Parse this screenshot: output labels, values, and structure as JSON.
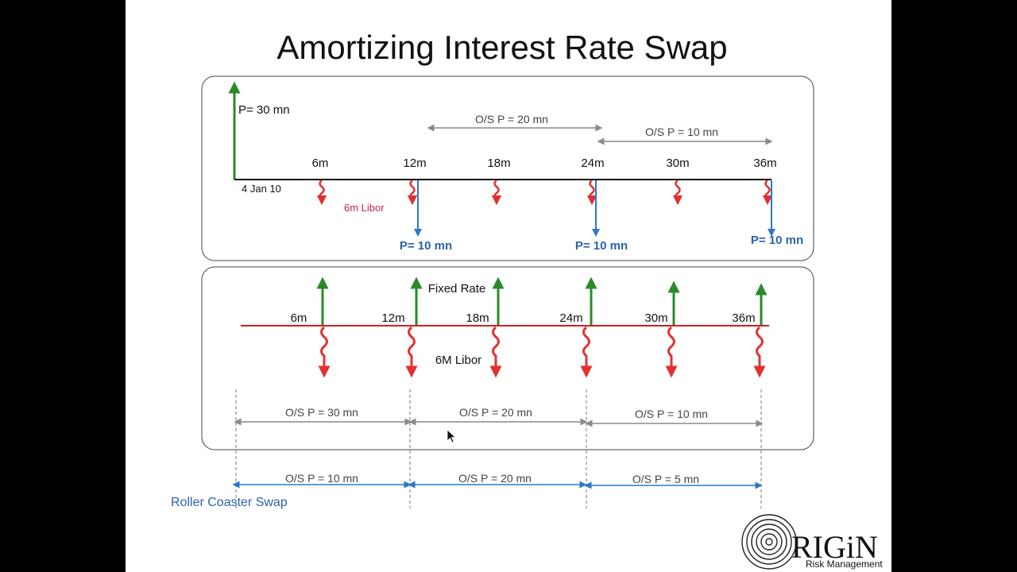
{
  "title": "Amortizing Interest Rate Swap",
  "colors": {
    "green": "#2a8a2a",
    "red": "#e23030",
    "blue": "#2a78c8",
    "gray": "#8a8a8a"
  },
  "panel1": {
    "principal_label": "P= 30 mn",
    "start_date": "4 Jan 10",
    "libor_label": "6m Libor",
    "periods": [
      "6m",
      "12m",
      "18m",
      "24m",
      "30m",
      "36m"
    ],
    "outstanding": [
      "O/S P = 20 mn",
      "O/S P = 10 mn"
    ],
    "repayments": [
      "P= 10 mn",
      "P= 10 mn",
      "P= 10 mn"
    ]
  },
  "panel2": {
    "fixed_label": "Fixed Rate",
    "libor_label": "6M Libor",
    "periods": [
      "6m",
      "12m",
      "18m",
      "24m",
      "30m",
      "36m"
    ],
    "outstanding": [
      "O/S P = 30 mn",
      "O/S P = 20 mn",
      "O/S P = 10 mn"
    ]
  },
  "roller": {
    "label": "Roller Coaster Swap",
    "outstanding": [
      "O/S P = 10 mn",
      "O/S P = 20 mn",
      "O/S P = 5 mn"
    ]
  },
  "logo": {
    "name": "RIGiN",
    "tagline": "Risk Management",
    "icon": "concentric-circles-logo-icon"
  }
}
